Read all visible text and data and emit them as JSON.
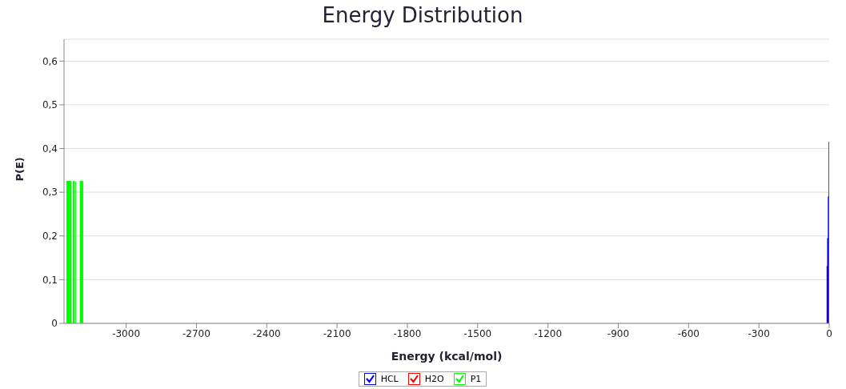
{
  "chart_data": {
    "type": "area",
    "title": "Energy Distribution",
    "xlabel": "Energy (kcal/mol)",
    "ylabel": "P(E)",
    "xlim": [
      -3265,
      0
    ],
    "xticks": [
      -3000,
      -2700,
      -2400,
      -2100,
      -1800,
      -1500,
      -1200,
      -900,
      -600,
      -300,
      0
    ],
    "ylim": [
      0,
      0.65
    ],
    "yticks": [
      {
        "value": 0,
        "label": "0"
      },
      {
        "value": 0.1,
        "label": "0,1"
      },
      {
        "value": 0.2,
        "label": "0,2"
      },
      {
        "value": 0.3,
        "label": "0,3"
      },
      {
        "value": 0.4,
        "label": "0,4"
      },
      {
        "value": 0.5,
        "label": "0,5"
      },
      {
        "value": 0.6,
        "label": "0,6"
      }
    ],
    "grid": "y",
    "legend": "bottom",
    "series": [
      {
        "name": "HCL",
        "color": "#0000ff",
        "x": [
          -11,
          -7,
          -4,
          -1,
          0
        ],
        "values": [
          0.13,
          0.195,
          0.29,
          0.03,
          0
        ]
      },
      {
        "name": "H2O",
        "color": "#ff0000",
        "x": [
          -4,
          -2,
          -1,
          0
        ],
        "values": [
          0.03,
          0.16,
          0.415,
          0
        ]
      },
      {
        "name": "P1",
        "color": "#00ff00",
        "x": [
          -3259,
          -3257,
          -3255,
          -3236,
          -3226,
          -3222,
          -3215,
          -3200,
          -3198,
          -3185
        ],
        "values": [
          0.325,
          null,
          0.325,
          0,
          0.325,
          0,
          0.325,
          null,
          0.325,
          0
        ]
      }
    ]
  }
}
